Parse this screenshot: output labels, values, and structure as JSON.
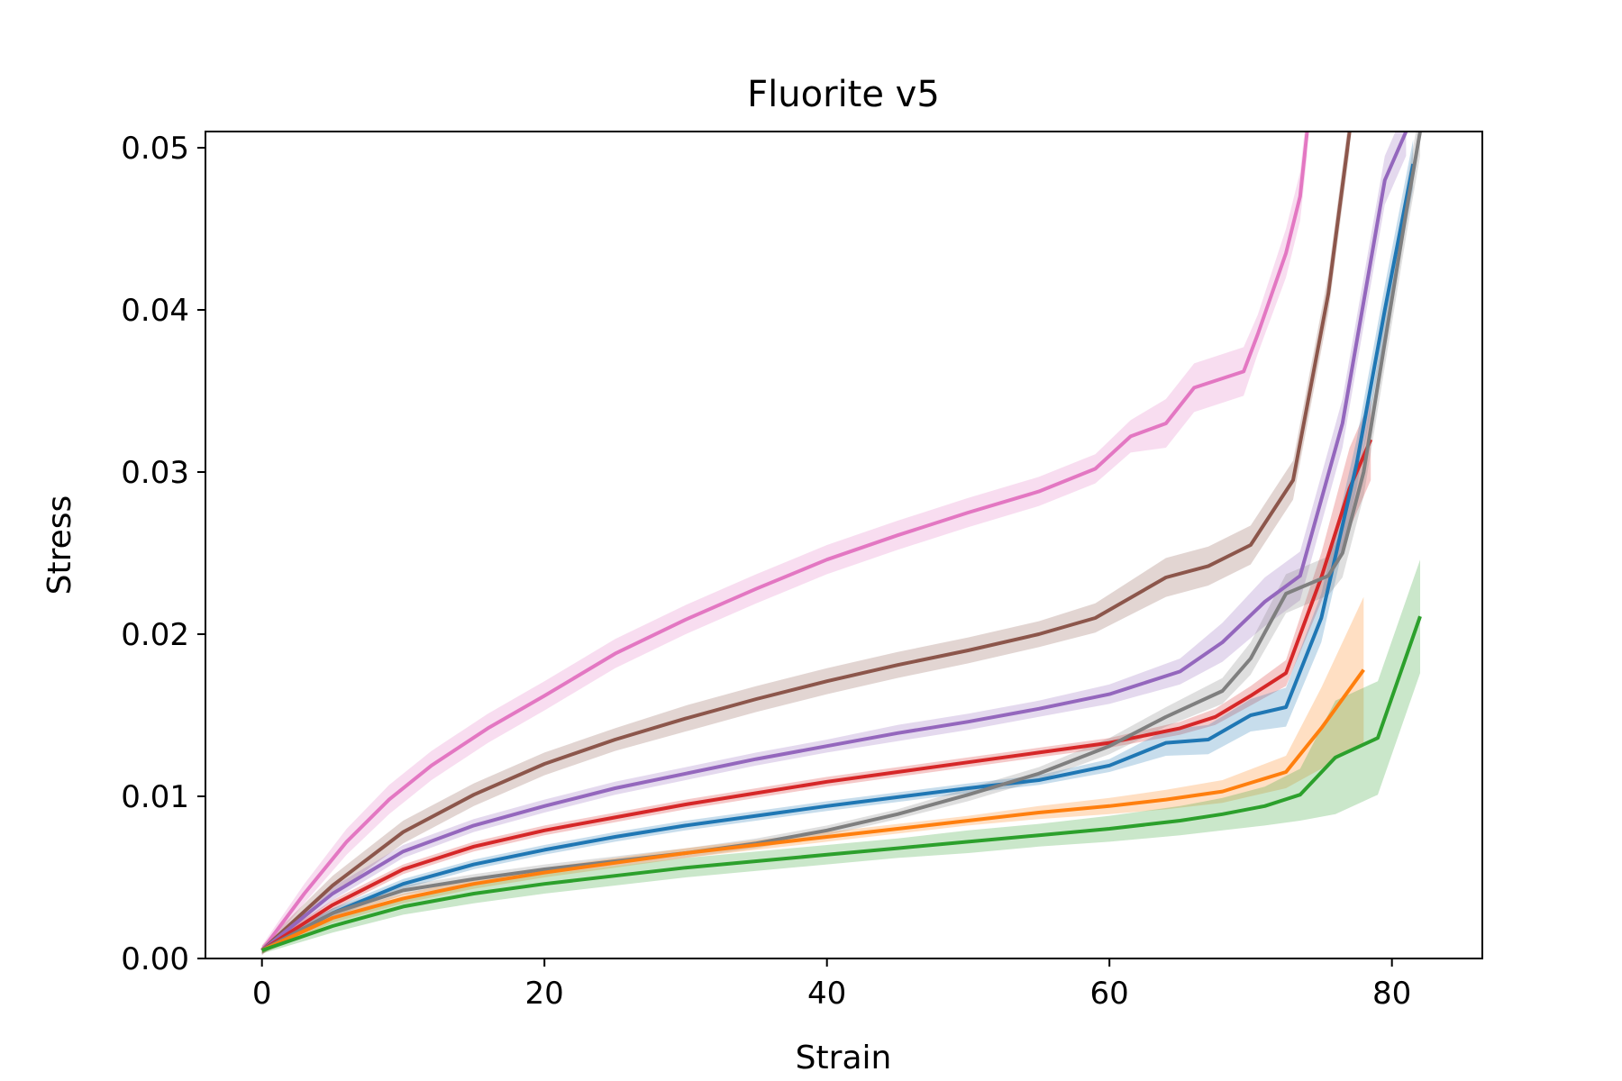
{
  "chart_data": {
    "type": "line",
    "title": "Fluorite v5",
    "xlabel": "Strain",
    "ylabel": "Stress",
    "xlim": [
      -4,
      86.4
    ],
    "ylim": [
      0,
      0.051
    ],
    "xticks": [
      0,
      20,
      40,
      60,
      80
    ],
    "yticks": [
      0.0,
      0.01,
      0.02,
      0.03,
      0.04,
      0.05
    ],
    "xtick_labels": [
      "0",
      "20",
      "40",
      "60",
      "80"
    ],
    "ytick_labels": [
      "0.00",
      "0.01",
      "0.02",
      "0.03",
      "0.04",
      "0.05"
    ],
    "grid": false,
    "legend": "none",
    "series": [
      {
        "color": "#e377c2",
        "x": [
          0,
          3,
          6,
          9,
          12,
          16,
          20,
          25,
          30,
          35,
          40,
          45,
          50,
          55,
          59,
          61.5,
          64,
          66,
          69.5,
          70.5,
          72.5,
          73.5,
          74
        ],
        "y": [
          0.0005,
          0.004,
          0.0072,
          0.0098,
          0.0119,
          0.0142,
          0.0162,
          0.0188,
          0.0209,
          0.0228,
          0.0246,
          0.0261,
          0.0275,
          0.0288,
          0.0302,
          0.0322,
          0.033,
          0.0352,
          0.0362,
          0.0385,
          0.0435,
          0.047,
          0.051
        ],
        "band": [
          0.0003,
          0.0006,
          0.0008,
          0.0009,
          0.0009,
          0.0009,
          0.0009,
          0.0009,
          0.0009,
          0.0009,
          0.0009,
          0.0009,
          0.0009,
          0.0009,
          0.0009,
          0.001,
          0.0015,
          0.0015,
          0.0015,
          0.0012,
          0.0015,
          0.0015,
          0.0015
        ]
      },
      {
        "color": "#8c564b",
        "x": [
          0,
          5,
          10,
          15,
          20,
          25,
          30,
          35,
          40,
          45,
          50,
          55,
          59,
          64,
          67,
          70,
          73,
          75.5,
          77
        ],
        "y": [
          0.0005,
          0.0045,
          0.0078,
          0.0101,
          0.012,
          0.0135,
          0.0148,
          0.016,
          0.0171,
          0.0181,
          0.019,
          0.02,
          0.021,
          0.0235,
          0.0242,
          0.0255,
          0.0295,
          0.041,
          0.051
        ],
        "band": [
          0.0003,
          0.0006,
          0.0007,
          0.0007,
          0.0007,
          0.0007,
          0.0008,
          0.0008,
          0.0008,
          0.0008,
          0.0008,
          0.0008,
          0.0009,
          0.0012,
          0.0012,
          0.0012,
          0.0012,
          0.0012,
          0.0012
        ]
      },
      {
        "color": "#9467bd",
        "x": [
          0,
          5,
          10,
          15,
          20,
          25,
          30,
          35,
          40,
          45,
          50,
          55,
          60,
          65,
          68,
          71,
          73.5,
          76.5,
          79.5,
          81
        ],
        "y": [
          0.0005,
          0.004,
          0.0066,
          0.0082,
          0.0094,
          0.0105,
          0.0114,
          0.0123,
          0.0131,
          0.0139,
          0.0146,
          0.0154,
          0.0163,
          0.0177,
          0.0195,
          0.022,
          0.0236,
          0.033,
          0.048,
          0.051
        ],
        "band": [
          0.0002,
          0.0004,
          0.0004,
          0.0004,
          0.0004,
          0.0004,
          0.0004,
          0.0004,
          0.0004,
          0.0005,
          0.0005,
          0.0005,
          0.0006,
          0.0008,
          0.0012,
          0.0015,
          0.0015,
          0.0015,
          0.0015,
          0.0015
        ]
      },
      {
        "color": "#d62728",
        "x": [
          0,
          5,
          10,
          15,
          20,
          25,
          30,
          35,
          40,
          45,
          50,
          55,
          60,
          65,
          67.5,
          70,
          72.5,
          75,
          77,
          78.5
        ],
        "y": [
          0.0005,
          0.0033,
          0.0055,
          0.0069,
          0.0079,
          0.0087,
          0.0095,
          0.0102,
          0.0109,
          0.0115,
          0.0121,
          0.0127,
          0.0133,
          0.0142,
          0.0149,
          0.0162,
          0.0176,
          0.0235,
          0.029,
          0.032
        ],
        "band": [
          0.0002,
          0.0003,
          0.0003,
          0.0003,
          0.0003,
          0.0003,
          0.0003,
          0.0003,
          0.0003,
          0.0003,
          0.0003,
          0.0003,
          0.0003,
          0.0004,
          0.0005,
          0.0006,
          0.0008,
          0.0015,
          0.0025,
          0.0025
        ]
      },
      {
        "color": "#1f77b4",
        "x": [
          0,
          5,
          10,
          15,
          20,
          25,
          30,
          35,
          40,
          45,
          50,
          55,
          60,
          64,
          67,
          70,
          72.5,
          75,
          77.5,
          79.5,
          81.5
        ],
        "y": [
          0.0005,
          0.0028,
          0.0046,
          0.0058,
          0.0067,
          0.0075,
          0.0082,
          0.0088,
          0.0094,
          0.00995,
          0.0105,
          0.011,
          0.0119,
          0.0133,
          0.0135,
          0.015,
          0.0155,
          0.021,
          0.0305,
          0.04,
          0.049
        ],
        "band": [
          0.0002,
          0.0003,
          0.0003,
          0.0003,
          0.0003,
          0.0003,
          0.0003,
          0.0003,
          0.0003,
          0.0003,
          0.0003,
          0.0003,
          0.0004,
          0.0008,
          0.0009,
          0.001,
          0.0012,
          0.0015,
          0.0015,
          0.0015,
          0.0015
        ]
      },
      {
        "color": "#7f7f7f",
        "x": [
          0,
          5,
          10,
          15,
          20,
          25,
          30,
          35,
          40,
          45,
          50,
          55,
          60,
          64,
          68,
          70,
          72.5,
          75.5,
          76.5,
          78,
          79.5,
          81,
          82
        ],
        "y": [
          0.0005,
          0.0028,
          0.0042,
          0.0049,
          0.0055,
          0.006,
          0.0065,
          0.0071,
          0.0079,
          0.0089,
          0.0101,
          0.0114,
          0.0131,
          0.0149,
          0.0165,
          0.0185,
          0.0225,
          0.0236,
          0.025,
          0.03,
          0.038,
          0.046,
          0.051
        ],
        "band": [
          0.0002,
          0.0003,
          0.0003,
          0.0003,
          0.0003,
          0.0003,
          0.0003,
          0.0003,
          0.0003,
          0.0003,
          0.0004,
          0.0004,
          0.0005,
          0.0006,
          0.0008,
          0.001,
          0.0012,
          0.0012,
          0.0015,
          0.0015,
          0.0015,
          0.0015,
          0.0015
        ]
      },
      {
        "color": "#ff7f0e",
        "x": [
          0,
          5,
          10,
          15,
          20,
          25,
          30,
          35,
          40,
          45,
          50,
          55,
          60,
          64,
          68,
          72.5,
          75,
          78
        ],
        "y": [
          0.0005,
          0.0025,
          0.0037,
          0.0046,
          0.0053,
          0.0059,
          0.0065,
          0.007,
          0.0075,
          0.008,
          0.0085,
          0.009,
          0.0094,
          0.0098,
          0.0103,
          0.0115,
          0.0142,
          0.0178
        ],
        "band": [
          0.0002,
          0.0003,
          0.0003,
          0.0003,
          0.0003,
          0.0003,
          0.0003,
          0.0003,
          0.0003,
          0.0003,
          0.0003,
          0.0004,
          0.0005,
          0.0006,
          0.0007,
          0.001,
          0.0025,
          0.0045
        ]
      },
      {
        "color": "#2ca02c",
        "x": [
          0,
          5,
          10,
          15,
          20,
          25,
          30,
          35,
          40,
          45,
          50,
          55,
          60,
          65,
          68,
          71,
          73.5,
          76,
          79,
          82
        ],
        "y": [
          0.0005,
          0.002,
          0.0032,
          0.004,
          0.0046,
          0.0051,
          0.0056,
          0.006,
          0.0064,
          0.0068,
          0.0072,
          0.0076,
          0.008,
          0.0085,
          0.0089,
          0.0094,
          0.0101,
          0.0124,
          0.0136,
          0.0211
        ],
        "band": [
          0.0002,
          0.0004,
          0.0005,
          0.0006,
          0.0006,
          0.0006,
          0.0006,
          0.0006,
          0.0006,
          0.0006,
          0.0007,
          0.0007,
          0.0008,
          0.0009,
          0.001,
          0.0012,
          0.0016,
          0.0035,
          0.0035,
          0.0035
        ]
      }
    ]
  }
}
